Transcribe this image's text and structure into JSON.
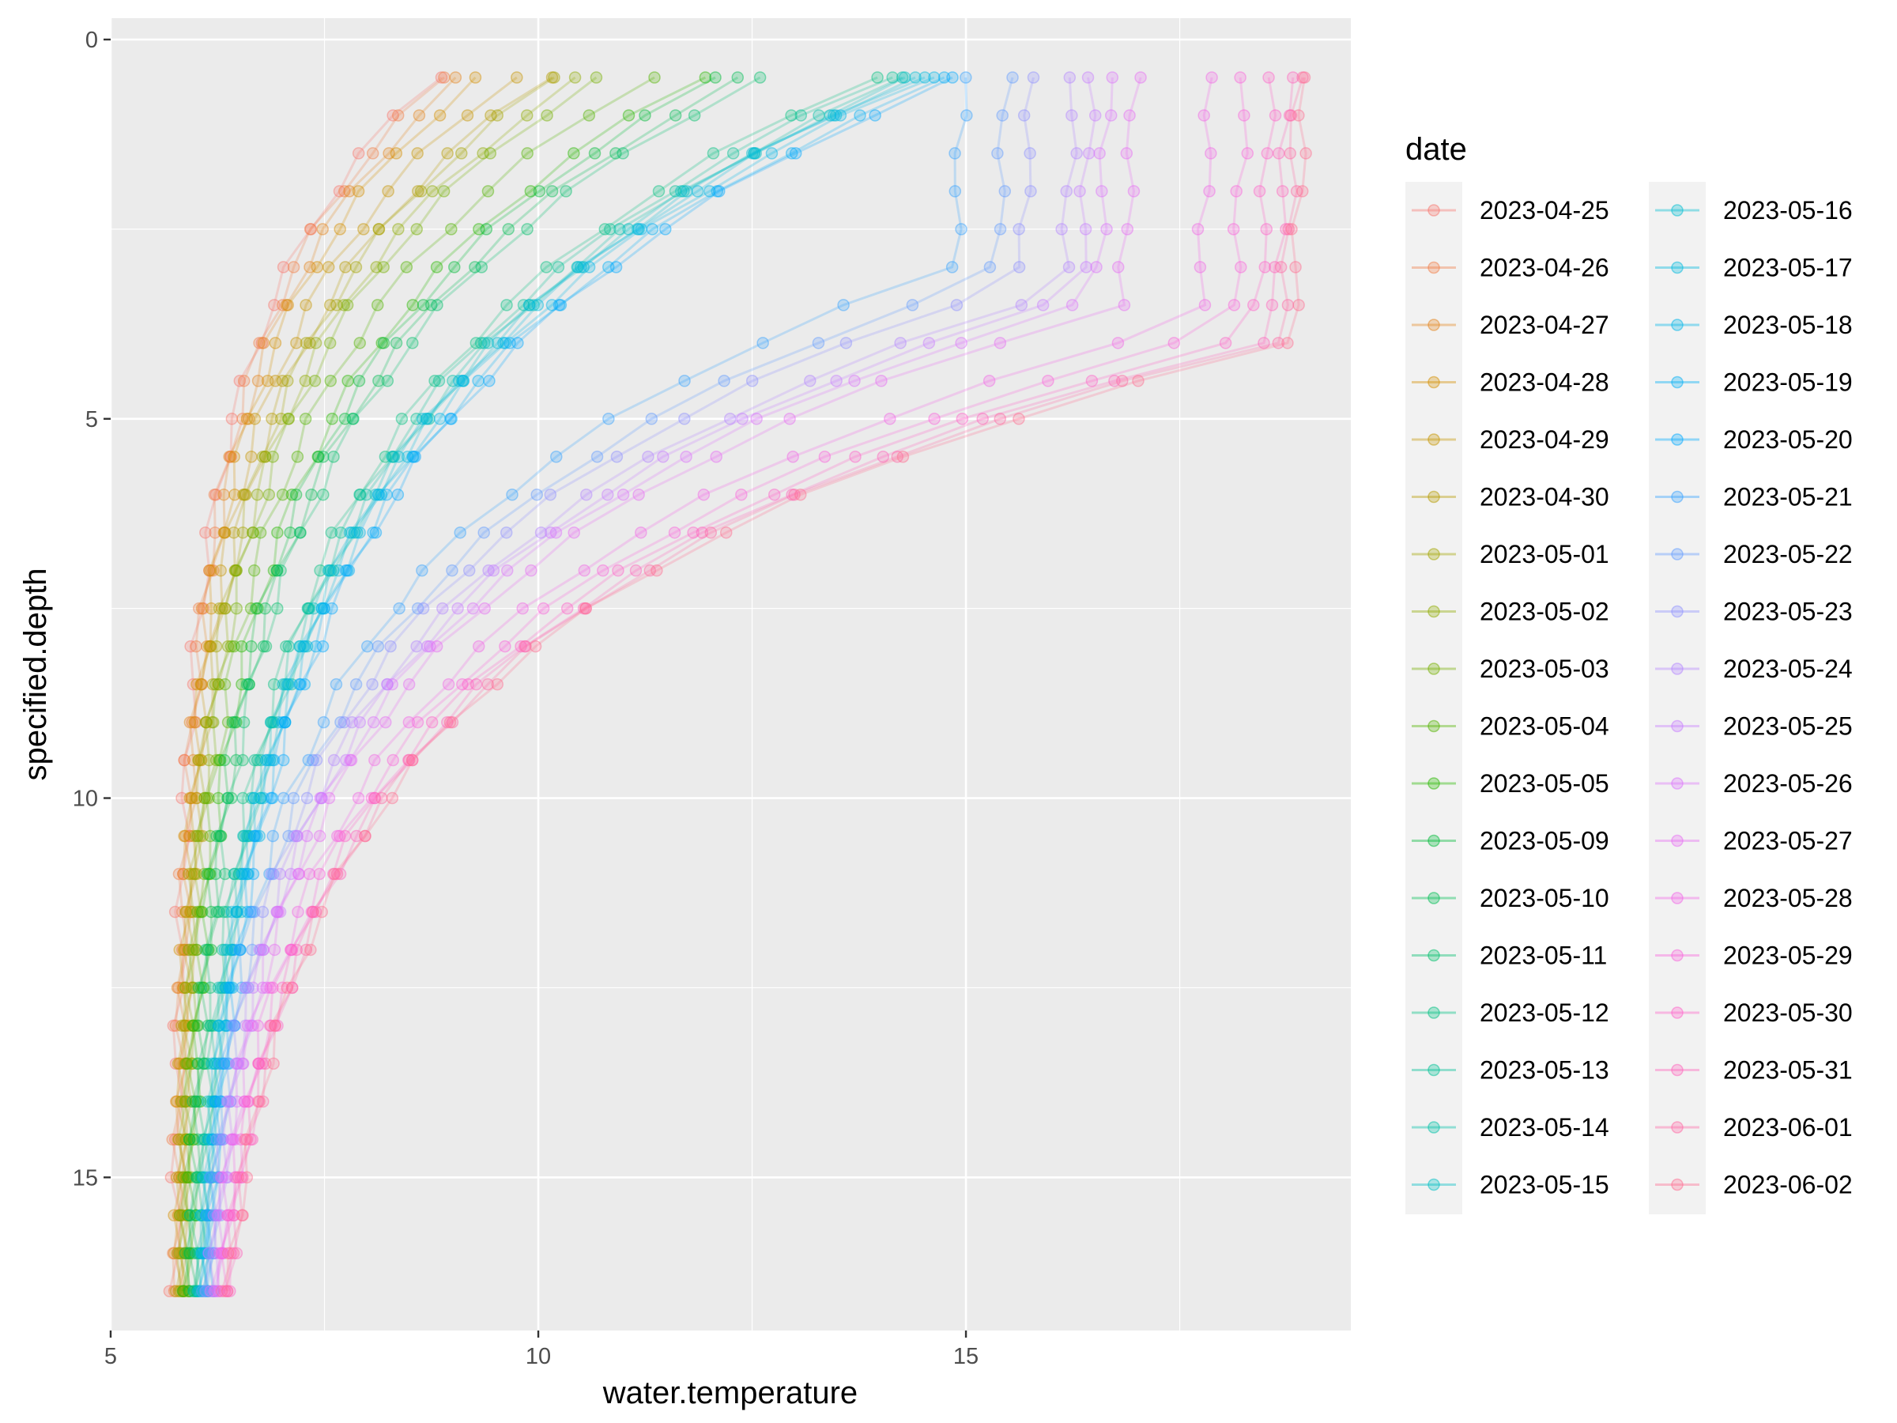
{
  "chart_data": {
    "type": "line",
    "xlabel": "water.temperature",
    "ylabel": "specified.depth",
    "xlim": [
      5,
      19.5
    ],
    "ylim": [
      0,
      17.3
    ],
    "y_reversed": true,
    "x_ticks": [
      5,
      10,
      15
    ],
    "y_ticks": [
      0,
      5,
      10,
      15
    ],
    "grid": true,
    "background": "#ebebeb",
    "point_alpha": 0.25,
    "legend_title": "date",
    "legend_position": "right",
    "legend_columns": 2,
    "depths": [
      0.5,
      1,
      1.5,
      2,
      2.5,
      3,
      3.5,
      4,
      4.5,
      5,
      5.5,
      6,
      6.5,
      7,
      7.5,
      8,
      8.5,
      9,
      9.5,
      10,
      10.5,
      11,
      11.5,
      12,
      12.5,
      13,
      13.5,
      14,
      14.5,
      15,
      15.5,
      16,
      16.5
    ],
    "series": [
      {
        "name": "2023-04-25",
        "color": "#f8766d",
        "surface": 8.8,
        "deep": 5.74
      },
      {
        "name": "2023-04-26",
        "color": "#f17e47",
        "surface": 8.9,
        "deep": 5.76
      },
      {
        "name": "2023-04-27",
        "color": "#e4861f",
        "surface": 9.1,
        "deep": 5.78
      },
      {
        "name": "2023-04-28",
        "color": "#d58f00",
        "surface": 9.3,
        "deep": 5.78
      },
      {
        "name": "2023-04-29",
        "color": "#c69500",
        "surface": 9.7,
        "deep": 5.79
      },
      {
        "name": "2023-04-30",
        "color": "#b69c00",
        "surface": 10.1,
        "deep": 5.8
      },
      {
        "name": "2023-05-01",
        "color": "#a3a500",
        "surface": 10.2,
        "deep": 5.8
      },
      {
        "name": "2023-05-02",
        "color": "#8fab00",
        "surface": 10.5,
        "deep": 5.81
      },
      {
        "name": "2023-05-03",
        "color": "#75af00",
        "surface": 10.7,
        "deep": 5.82
      },
      {
        "name": "2023-05-04",
        "color": "#53b400",
        "surface": 11.3,
        "deep": 5.83
      },
      {
        "name": "2023-05-05",
        "color": "#27b800",
        "surface": 11.9,
        "deep": 5.84
      },
      {
        "name": "2023-05-09",
        "color": "#00ba38",
        "surface": 12.1,
        "deep": 5.85
      },
      {
        "name": "2023-05-10",
        "color": "#00bd54",
        "surface": 12.4,
        "deep": 5.86
      },
      {
        "name": "2023-05-11",
        "color": "#00bf6b",
        "surface": 12.6,
        "deep": 5.87
      },
      {
        "name": "2023-05-12",
        "color": "#00c081",
        "surface": 13.9,
        "deep": 5.88
      },
      {
        "name": "2023-05-13",
        "color": "#00c195",
        "surface": 14.1,
        "deep": 5.88
      },
      {
        "name": "2023-05-14",
        "color": "#00c1a7",
        "surface": 14.3,
        "deep": 5.89
      },
      {
        "name": "2023-05-15",
        "color": "#00bfc4",
        "surface": 14.35,
        "deep": 5.9
      },
      {
        "name": "2023-05-16",
        "color": "#00bdd2",
        "surface": 14.4,
        "deep": 5.9
      },
      {
        "name": "2023-05-17",
        "color": "#00bade",
        "surface": 14.45,
        "deep": 5.91
      },
      {
        "name": "2023-05-18",
        "color": "#00b6e9",
        "surface": 14.6,
        "deep": 5.92
      },
      {
        "name": "2023-05-19",
        "color": "#00b0f6",
        "surface": 14.8,
        "deep": 5.93
      },
      {
        "name": "2023-05-20",
        "color": "#00a9ff",
        "surface": 14.9,
        "deep": 5.94
      },
      {
        "name": "2023-05-21",
        "color": "#35a2ff",
        "surface": 15.0,
        "deep": 5.94
      },
      {
        "name": "2023-05-22",
        "color": "#619cff",
        "surface": 15.5,
        "deep": 5.95
      },
      {
        "name": "2023-05-23",
        "color": "#8f91ff",
        "surface": 15.8,
        "deep": 5.96
      },
      {
        "name": "2023-05-24",
        "color": "#b385ff",
        "surface": 16.3,
        "deep": 5.97
      },
      {
        "name": "2023-05-25",
        "color": "#c77cff",
        "surface": 16.5,
        "deep": 5.98
      },
      {
        "name": "2023-05-26",
        "color": "#db72fb",
        "surface": 16.7,
        "deep": 5.99
      },
      {
        "name": "2023-05-27",
        "color": "#e76bf3",
        "surface": 17.0,
        "deep": 6.0
      },
      {
        "name": "2023-05-28",
        "color": "#f265e7",
        "surface": 17.9,
        "deep": 6.01
      },
      {
        "name": "2023-05-29",
        "color": "#fa62db",
        "surface": 18.3,
        "deep": 6.02
      },
      {
        "name": "2023-05-30",
        "color": "#ff61c9",
        "surface": 18.6,
        "deep": 6.03
      },
      {
        "name": "2023-05-31",
        "color": "#ff62bc",
        "surface": 18.8,
        "deep": 6.04
      },
      {
        "name": "2023-06-01",
        "color": "#ff67a4",
        "surface": 18.9,
        "deep": 6.05
      },
      {
        "name": "2023-06-02",
        "color": "#ff6c91",
        "surface": 19.0,
        "deep": 6.06
      }
    ]
  }
}
